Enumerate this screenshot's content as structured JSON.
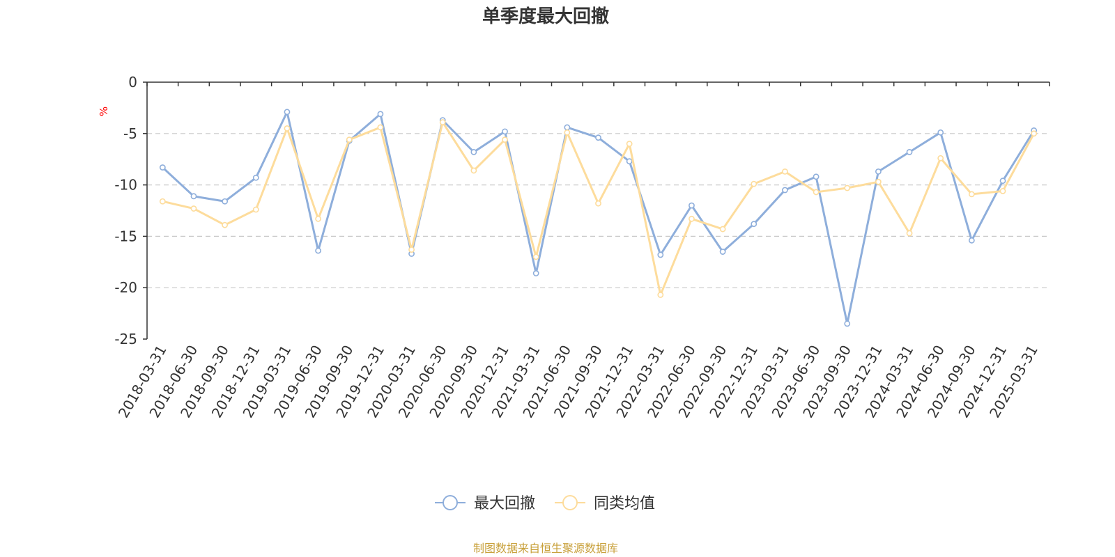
{
  "chart_data": {
    "type": "line",
    "title": "单季度最大回撤",
    "ylabel": "%",
    "xlabel": "",
    "ylim": [
      -25,
      0
    ],
    "yticks": [
      0,
      -5,
      -10,
      -15,
      -20,
      -25
    ],
    "grid": true,
    "legend_position": "bottom-center",
    "categories": [
      "2018-03-31",
      "2018-06-30",
      "2018-09-30",
      "2018-12-31",
      "2019-03-31",
      "2019-06-30",
      "2019-09-30",
      "2019-12-31",
      "2020-03-31",
      "2020-06-30",
      "2020-09-30",
      "2020-12-31",
      "2021-03-31",
      "2021-06-30",
      "2021-09-30",
      "2021-12-31",
      "2022-03-31",
      "2022-06-30",
      "2022-09-30",
      "2022-12-31",
      "2023-03-31",
      "2023-06-30",
      "2023-09-30",
      "2023-12-31",
      "2024-03-31",
      "2024-06-30",
      "2024-09-30",
      "2024-12-31",
      "2025-03-31"
    ],
    "series": [
      {
        "name": "最大回撤",
        "color": "#8eaedb",
        "values": [
          -8.3,
          -11.1,
          -11.6,
          -9.3,
          -2.9,
          -16.4,
          -5.7,
          -3.1,
          -16.7,
          -3.7,
          -6.8,
          -4.8,
          -18.6,
          -4.4,
          -5.4,
          -7.7,
          -16.8,
          -12.0,
          -16.5,
          -13.8,
          -10.5,
          -9.2,
          -23.5,
          -8.7,
          -6.8,
          -4.9,
          -15.4,
          -9.6,
          -4.7
        ]
      },
      {
        "name": "同类均值",
        "color": "#fddc9c",
        "values": [
          -11.6,
          -12.3,
          -13.9,
          -12.4,
          -4.5,
          -13.3,
          -5.6,
          -4.4,
          -16.3,
          -3.9,
          -8.6,
          -5.6,
          -17.0,
          -4.9,
          -11.8,
          -6.0,
          -20.7,
          -13.3,
          -14.3,
          -9.9,
          -8.7,
          -10.7,
          -10.3,
          -9.7,
          -14.7,
          -7.4,
          -10.9,
          -10.6,
          -5.0
        ]
      }
    ]
  },
  "source_note": "制图数据来自恒生聚源数据库"
}
